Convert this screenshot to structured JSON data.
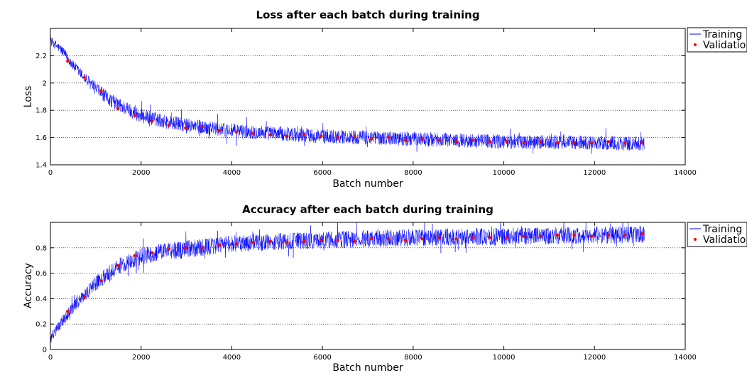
{
  "chart_data": [
    {
      "type": "line",
      "title": "Loss after each batch during training",
      "xlabel": "Batch number",
      "ylabel": "Loss",
      "xlim": [
        0,
        14000
      ],
      "ylim": [
        1.4,
        2.4
      ],
      "xticks": [
        "0",
        "2000",
        "4000",
        "6000",
        "8000",
        "10000",
        "12000",
        "14000"
      ],
      "yticks": [
        "1.4",
        "1.6",
        "1.8",
        "2",
        "2.2"
      ],
      "grid": "horizontal-dotted",
      "legend_position": "outside-right",
      "series": [
        {
          "name": "Training",
          "style": "line",
          "color": "#0000ff",
          "x": [
            0,
            250,
            500,
            750,
            1000,
            1250,
            1500,
            1750,
            2000,
            2500,
            3000,
            3500,
            4000,
            5000,
            6000,
            7000,
            8000,
            9000,
            10000,
            11000,
            12000,
            13100
          ],
          "values": [
            2.31,
            2.24,
            2.13,
            2.04,
            1.96,
            1.89,
            1.84,
            1.8,
            1.76,
            1.72,
            1.69,
            1.67,
            1.65,
            1.63,
            1.61,
            1.6,
            1.59,
            1.58,
            1.57,
            1.565,
            1.56,
            1.555
          ],
          "noise": 0.07
        },
        {
          "name": "Validation",
          "style": "markers",
          "color": "#ff0000",
          "x": [
            380,
            750,
            1120,
            1490,
            1860,
            2240,
            2610,
            2980,
            3350,
            3730,
            4100,
            4470,
            4850,
            5220,
            5590,
            5970,
            6340,
            6710,
            7080,
            7460,
            7830,
            8200,
            8570,
            8950,
            9320,
            9690,
            10060,
            10440,
            10810,
            11180,
            11550,
            11930,
            12300,
            12670,
            13050
          ],
          "values": [
            2.16,
            2.04,
            1.94,
            1.81,
            1.76,
            1.72,
            1.69,
            1.67,
            1.68,
            1.65,
            1.64,
            1.63,
            1.62,
            1.61,
            1.62,
            1.61,
            1.6,
            1.61,
            1.59,
            1.6,
            1.58,
            1.59,
            1.58,
            1.57,
            1.58,
            1.57,
            1.57,
            1.56,
            1.57,
            1.56,
            1.56,
            1.56,
            1.57,
            1.56,
            1.56
          ]
        }
      ]
    },
    {
      "type": "line",
      "title": "Accuracy after each batch during training",
      "xlabel": "Batch number",
      "ylabel": "Accuracy",
      "xlim": [
        0,
        14000
      ],
      "ylim": [
        0,
        1
      ],
      "xticks": [
        "0",
        "2000",
        "4000",
        "6000",
        "8000",
        "10000",
        "12000",
        "14000"
      ],
      "yticks": [
        "0",
        "0.2",
        "0.4",
        "0.6",
        "0.8"
      ],
      "grid": "horizontal-dotted",
      "legend_position": "outside-right",
      "series": [
        {
          "name": "Training",
          "style": "line",
          "color": "#0000ff",
          "x": [
            0,
            250,
            500,
            750,
            1000,
            1250,
            1500,
            1750,
            2000,
            2500,
            3000,
            3500,
            4000,
            5000,
            6000,
            7000,
            8000,
            9000,
            10000,
            11000,
            12000,
            13100
          ],
          "values": [
            0.08,
            0.22,
            0.33,
            0.43,
            0.52,
            0.59,
            0.65,
            0.7,
            0.73,
            0.77,
            0.79,
            0.81,
            0.83,
            0.85,
            0.86,
            0.87,
            0.88,
            0.885,
            0.89,
            0.895,
            0.9,
            0.905
          ],
          "noise": 0.09
        },
        {
          "name": "Validation",
          "style": "markers",
          "color": "#ff0000",
          "x": [
            380,
            750,
            1120,
            1490,
            1860,
            2240,
            2610,
            2980,
            3350,
            3730,
            4100,
            4470,
            4850,
            5220,
            5590,
            5970,
            6340,
            6710,
            7080,
            7460,
            7830,
            8200,
            8570,
            8950,
            9320,
            9690,
            10060,
            10440,
            10810,
            11180,
            11550,
            11930,
            12300,
            12670,
            13050
          ],
          "values": [
            0.3,
            0.41,
            0.54,
            0.66,
            0.74,
            0.76,
            0.79,
            0.8,
            0.8,
            0.82,
            0.83,
            0.84,
            0.85,
            0.84,
            0.85,
            0.86,
            0.86,
            0.85,
            0.87,
            0.87,
            0.86,
            0.87,
            0.88,
            0.87,
            0.88,
            0.88,
            0.88,
            0.89,
            0.89,
            0.9,
            0.9,
            0.89,
            0.9,
            0.9,
            0.91
          ]
        }
      ]
    }
  ],
  "legend": {
    "training_label": "Training",
    "validation_label": "Validatio"
  }
}
